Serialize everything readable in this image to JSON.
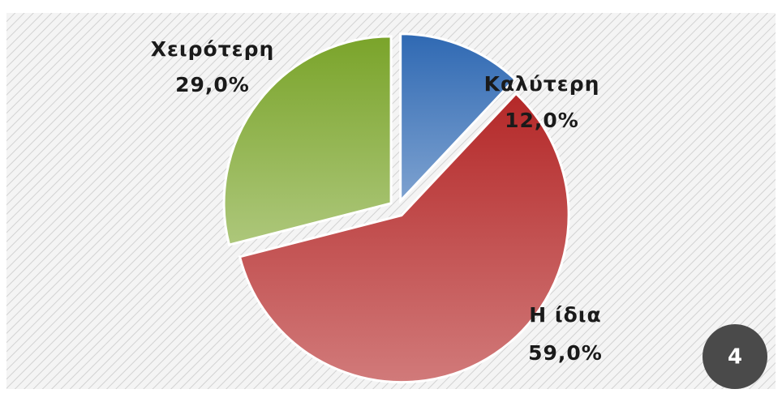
{
  "chart_data": {
    "type": "pie",
    "categories": [
      "Καλύτερη",
      "Η ίδια",
      "Χειρότερη"
    ],
    "values": [
      12,
      59,
      29
    ],
    "value_labels": [
      "12,0%",
      "59,0%",
      "29,0%"
    ],
    "colors": [
      "#2f69b3",
      "#b42828",
      "#7aa42a"
    ]
  },
  "badge": "4"
}
